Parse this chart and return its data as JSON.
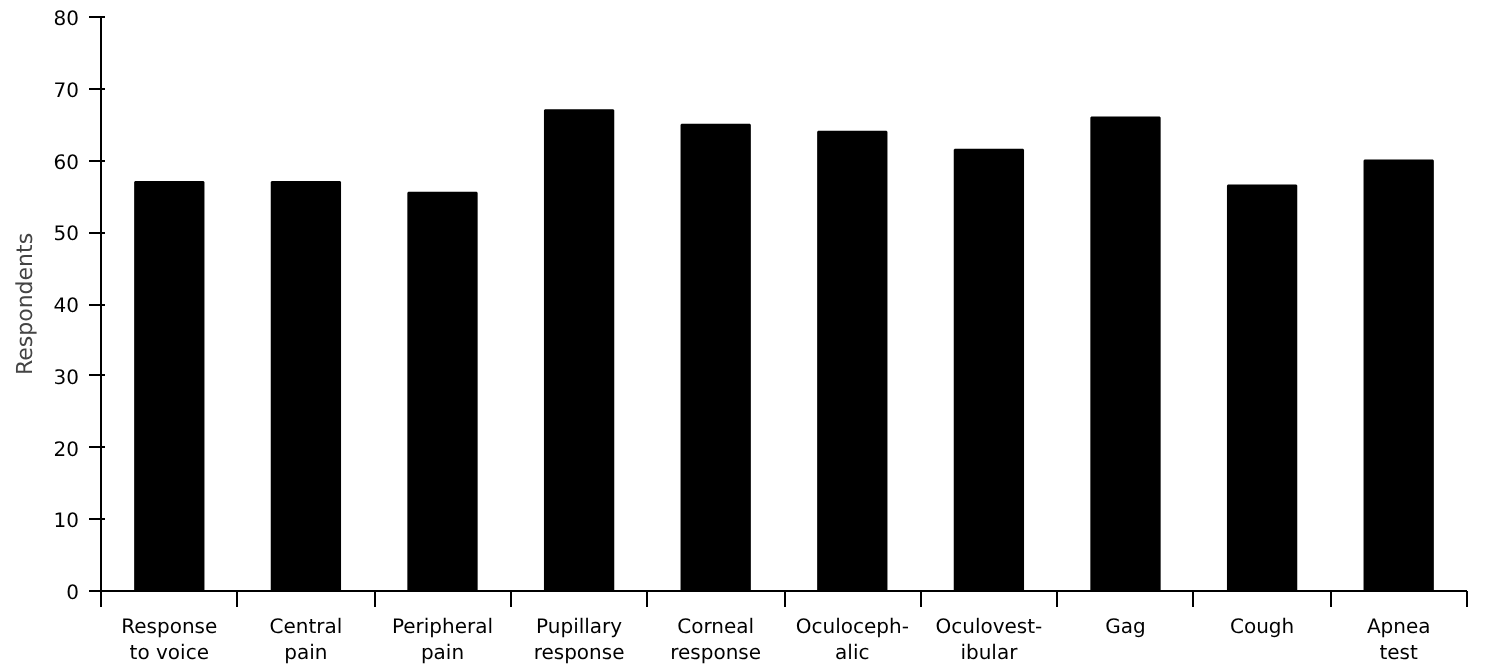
{
  "chart_data": {
    "type": "bar",
    "ylabel": "Respondents",
    "categories": [
      "Response\nto voice",
      "Central\npain",
      "Peripheral\npain",
      "Pupillary\nresponse",
      "Corneal\nresponse",
      "Oculoceph-\nalic",
      "Oculovest-\nibular",
      "Gag",
      "Cough",
      "Apnea\ntest"
    ],
    "values": [
      57,
      57,
      55.5,
      67,
      65,
      64,
      61.5,
      66,
      56.5,
      60
    ],
    "color": "#000000",
    "ylim": [
      0,
      80
    ],
    "yticks": [
      0,
      10,
      20,
      30,
      40,
      50,
      60,
      70,
      80
    ],
    "grid": false
  }
}
